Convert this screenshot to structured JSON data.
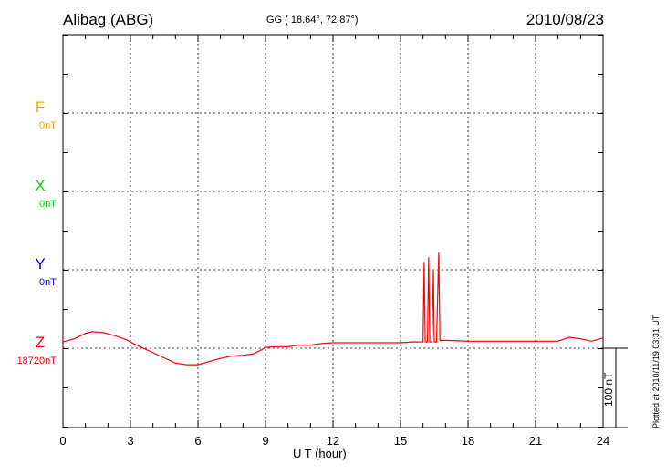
{
  "chart_data": {
    "type": "line",
    "station": "Alibag (ABG)",
    "coords": "GG ( 18.64°,  72.87°)",
    "date": "2010/08/23",
    "xlabel": "U T (hour)",
    "xlim": [
      0,
      24
    ],
    "xticks": [
      "0",
      "3",
      "6",
      "9",
      "12",
      "15",
      "18",
      "21",
      "24"
    ],
    "scale_label": "100 nT",
    "footer": "Plotted at 2010/11/19 03:31  UT",
    "channels": [
      {
        "name": "F",
        "baseline": "0nT",
        "color": "#ffa500"
      },
      {
        "name": "X",
        "baseline": "0nT",
        "color": "#00dd00"
      },
      {
        "name": "Y",
        "baseline": "0nT",
        "color": "#0000ff"
      },
      {
        "name": "Z",
        "baseline": "18720nT",
        "color": "#ff0000"
      }
    ],
    "series": [
      {
        "name": "Z",
        "color": "#ff0000",
        "unit": "nT offset from 18720",
        "x": [
          0,
          0.5,
          1,
          1.3,
          1.8,
          2.3,
          2.8,
          3.2,
          3.8,
          4.4,
          5,
          5.5,
          6,
          6.5,
          7,
          7.5,
          8,
          8.5,
          9,
          9.5,
          10,
          10.5,
          11,
          11.5,
          12,
          13,
          14,
          15,
          15.5,
          16.0,
          16.05,
          16.1,
          16.2,
          16.25,
          16.3,
          16.4,
          16.46,
          16.5,
          16.6,
          16.7,
          16.75,
          17,
          18,
          19,
          20,
          21,
          22,
          22.5,
          23,
          23.5,
          24
        ],
        "y": [
          8,
          12,
          19,
          21,
          20,
          16,
          11,
          5,
          -3,
          -11,
          -19,
          -21,
          -21,
          -17,
          -13,
          -10,
          -9,
          -7,
          1,
          2,
          2,
          4,
          4,
          6,
          7,
          7,
          7,
          7,
          8,
          8,
          110,
          8,
          8,
          116,
          8,
          8,
          99,
          8,
          8,
          122,
          10,
          10,
          9,
          9,
          9,
          9,
          9,
          14,
          12,
          9,
          13
        ]
      }
    ]
  }
}
